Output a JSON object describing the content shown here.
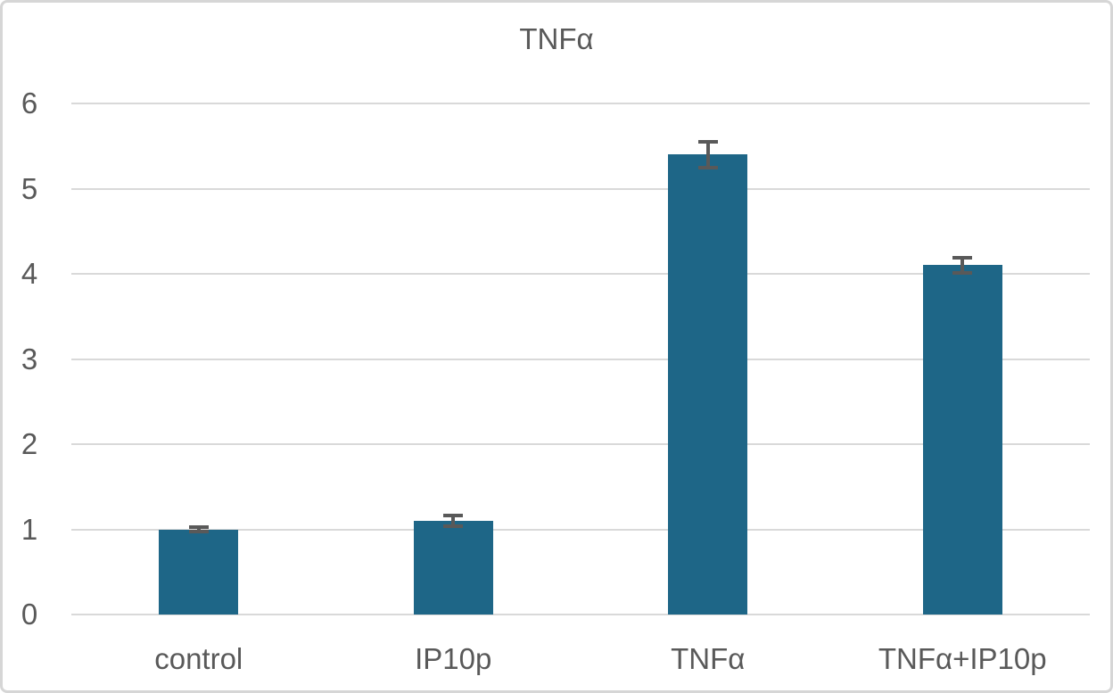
{
  "chart_data": {
    "type": "bar",
    "title": "TNFα",
    "categories": [
      "control",
      "IP10p",
      "TNFα",
      "TNFα+IP10p"
    ],
    "values": [
      1.0,
      1.1,
      5.4,
      4.1
    ],
    "error_bars": [
      0.03,
      0.06,
      0.15,
      0.09
    ],
    "xlabel": "",
    "ylabel": "",
    "ylim": [
      0,
      6
    ],
    "yticks": [
      0,
      1,
      2,
      3,
      4,
      5,
      6
    ],
    "grid": true,
    "legend_position": "none",
    "colors": {
      "bar": "#1e6687",
      "error": "#595959",
      "gridline": "#d9d9d9",
      "text": "#595959",
      "border": "#d6d6d6",
      "background": "#ffffff"
    }
  }
}
